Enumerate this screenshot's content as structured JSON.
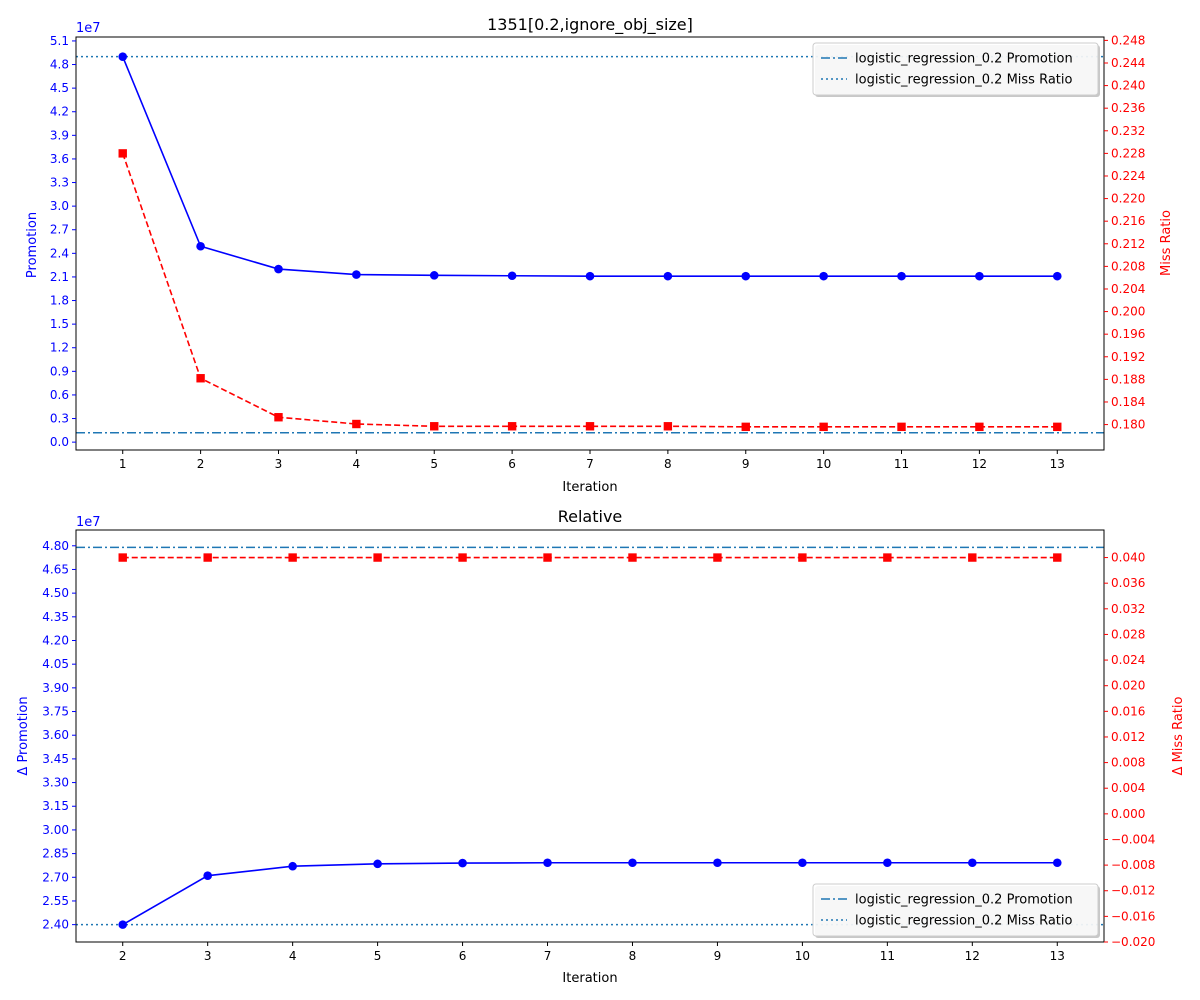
{
  "chart_data": [
    {
      "type": "line",
      "title": "1351[0.2,ignore_obj_size]",
      "xlabel": "Iteration",
      "ylabel_left": "Promotion",
      "ylabel_right": "Miss Ratio",
      "left_offset_text": "1e7",
      "x": [
        1,
        2,
        3,
        4,
        5,
        6,
        7,
        8,
        9,
        10,
        11,
        12,
        13
      ],
      "x_ticks": [
        "1",
        "2",
        "3",
        "4",
        "5",
        "6",
        "7",
        "8",
        "9",
        "10",
        "11",
        "12",
        "13"
      ],
      "y_left_ticks": [
        "0.0",
        "0.3",
        "0.6",
        "0.9",
        "1.2",
        "1.5",
        "1.8",
        "2.1",
        "2.4",
        "2.7",
        "3.0",
        "3.3",
        "3.6",
        "3.9",
        "4.2",
        "4.5",
        "4.8",
        "5.1"
      ],
      "y_left_tick_values": [
        0.0,
        0.3,
        0.6,
        0.9,
        1.2,
        1.5,
        1.8,
        2.1,
        2.4,
        2.7,
        3.0,
        3.3,
        3.6,
        3.9,
        4.2,
        4.5,
        4.8,
        5.1
      ],
      "y_right_ticks": [
        "0.180",
        "0.184",
        "0.188",
        "0.192",
        "0.196",
        "0.200",
        "0.204",
        "0.208",
        "0.212",
        "0.216",
        "0.220",
        "0.224",
        "0.228",
        "0.232",
        "0.236",
        "0.240",
        "0.244",
        "0.248"
      ],
      "y_right_tick_values": [
        0.18,
        0.184,
        0.188,
        0.192,
        0.196,
        0.2,
        0.204,
        0.208,
        0.212,
        0.216,
        0.22,
        0.224,
        0.228,
        0.232,
        0.236,
        0.24,
        0.244,
        0.248
      ],
      "xlim": [
        0.4,
        13.6
      ],
      "ylim_left": [
        -0.1,
        5.15
      ],
      "ylim_right": [
        0.1755,
        0.2486
      ],
      "series": [
        {
          "axis": "left",
          "color": "#0000ff",
          "linestyle": "solid",
          "marker": "circle",
          "values": [
            4.9,
            2.49,
            2.2,
            2.13,
            2.12,
            2.115,
            2.11,
            2.11,
            2.11,
            2.11,
            2.11,
            2.11,
            2.11
          ]
        },
        {
          "axis": "right",
          "color": "#ff0000",
          "linestyle": "dashed",
          "marker": "square",
          "values": [
            0.228,
            0.1882,
            0.1813,
            0.1801,
            0.1797,
            0.1797,
            0.1797,
            0.1797,
            0.1796,
            0.1796,
            0.1796,
            0.1796,
            0.1796
          ]
        }
      ],
      "reference_lines": [
        {
          "axis": "left",
          "value": 0.12,
          "style": "dashdot",
          "color": "#1f77b4"
        },
        {
          "axis": "left",
          "value": 4.9,
          "style": "dotted",
          "color": "#1f77b4"
        }
      ],
      "legend": {
        "placement": "upper right",
        "entries": [
          {
            "label": "logistic_regression_0.2 Promotion",
            "style": "dashdot",
            "color": "#1f77b4"
          },
          {
            "label": "logistic_regression_0.2 Miss Ratio",
            "style": "dotted",
            "color": "#1f77b4"
          }
        ]
      },
      "grid": false
    },
    {
      "type": "line",
      "title": "Relative",
      "xlabel": "Iteration",
      "ylabel_left": "Δ Promotion",
      "ylabel_right": "Δ Miss Ratio",
      "left_offset_text": "1e7",
      "x": [
        2,
        3,
        4,
        5,
        6,
        7,
        8,
        9,
        10,
        11,
        12,
        13
      ],
      "x_ticks": [
        "2",
        "3",
        "4",
        "5",
        "6",
        "7",
        "8",
        "9",
        "10",
        "11",
        "12",
        "13"
      ],
      "y_left_ticks": [
        "2.40",
        "2.55",
        "2.70",
        "2.85",
        "3.00",
        "3.15",
        "3.30",
        "3.45",
        "3.60",
        "3.75",
        "3.90",
        "4.05",
        "4.20",
        "4.35",
        "4.50",
        "4.65",
        "4.80"
      ],
      "y_left_tick_values": [
        2.4,
        2.55,
        2.7,
        2.85,
        3.0,
        3.15,
        3.3,
        3.45,
        3.6,
        3.75,
        3.9,
        4.05,
        4.2,
        4.35,
        4.5,
        4.65,
        4.8
      ],
      "y_right_ticks": [
        "−0.020",
        "−0.016",
        "−0.012",
        "−0.008",
        "−0.004",
        "0.000",
        "0.004",
        "0.008",
        "0.012",
        "0.016",
        "0.020",
        "0.024",
        "0.028",
        "0.032",
        "0.036",
        "0.040"
      ],
      "y_right_tick_values": [
        -0.02,
        -0.016,
        -0.012,
        -0.008,
        -0.004,
        0.0,
        0.004,
        0.008,
        0.012,
        0.016,
        0.02,
        0.024,
        0.028,
        0.032,
        0.036,
        0.04
      ],
      "xlim": [
        1.45,
        13.55
      ],
      "ylim_left": [
        2.29,
        4.9
      ],
      "ylim_right": [
        -0.02,
        0.0443
      ],
      "series": [
        {
          "axis": "left",
          "color": "#0000ff",
          "linestyle": "solid",
          "marker": "circle",
          "values": [
            2.4,
            2.71,
            2.77,
            2.785,
            2.79,
            2.792,
            2.792,
            2.792,
            2.792,
            2.792,
            2.792,
            2.792
          ]
        },
        {
          "axis": "right",
          "color": "#ff0000",
          "linestyle": "dashed",
          "marker": "square",
          "values": [
            0.04,
            0.04,
            0.04,
            0.04,
            0.04,
            0.04,
            0.04,
            0.04,
            0.04,
            0.04,
            0.04,
            0.04
          ]
        }
      ],
      "reference_lines": [
        {
          "axis": "left",
          "value": 4.79,
          "style": "dashdot",
          "color": "#1f77b4"
        },
        {
          "axis": "left",
          "value": 2.4,
          "style": "dotted",
          "color": "#1f77b4"
        }
      ],
      "legend": {
        "placement": "lower right",
        "entries": [
          {
            "label": "logistic_regression_0.2 Promotion",
            "style": "dashdot",
            "color": "#1f77b4"
          },
          {
            "label": "logistic_regression_0.2 Miss Ratio",
            "style": "dotted",
            "color": "#1f77b4"
          }
        ]
      },
      "grid": false
    }
  ]
}
